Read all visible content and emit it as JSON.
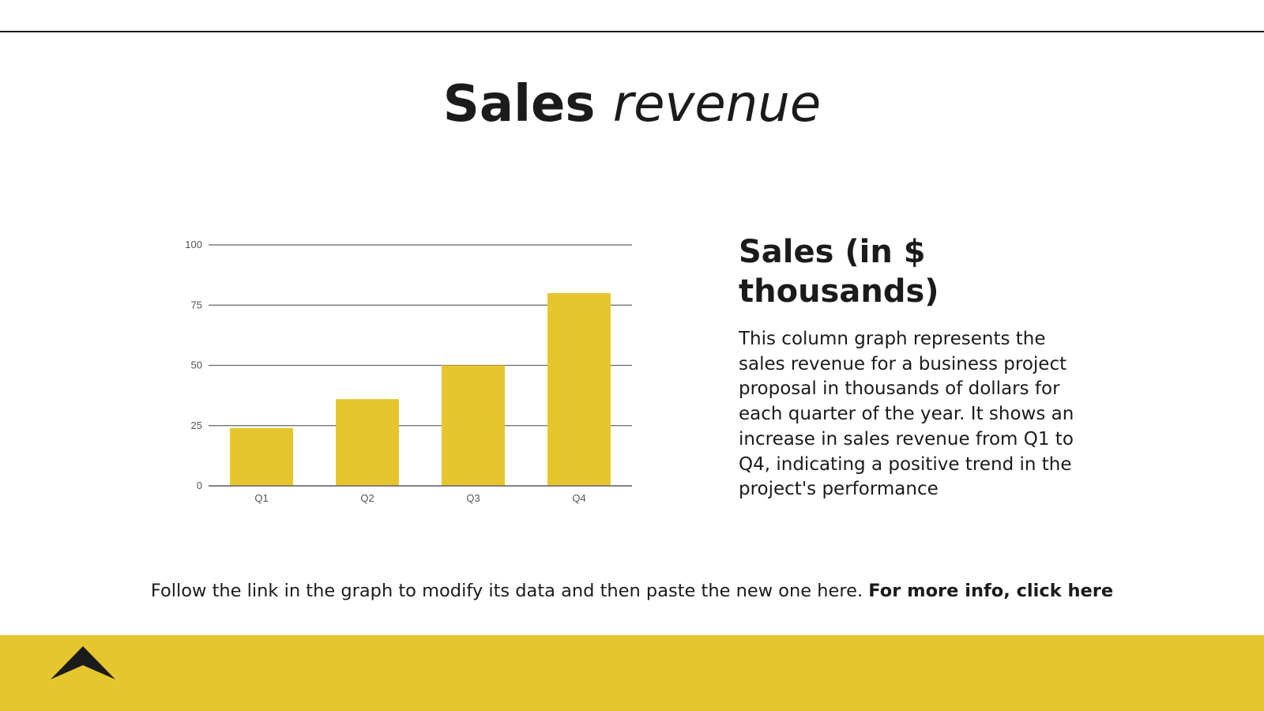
{
  "slide": {
    "title_bold": "Sales",
    "title_italic": "revenue",
    "side_title": "Sales (in $ thousands)",
    "side_text": "This column graph represents the sales revenue for a business project proposal in thousands of dollars for each quarter of the year. It shows an increase in sales revenue from Q1 to Q4, indicating a positive trend in the project's performance",
    "footer_text": "Follow the link in the graph to modify its data and then paste the new one here.",
    "footer_link": "For more info, click here",
    "up_icon": "chevron-up-icon"
  },
  "colors": {
    "accent": "#e6c62e",
    "text": "#1b1b1b",
    "grid": "#666666",
    "tick": "#555555"
  },
  "chart_data": {
    "type": "bar",
    "categories": [
      "Q1",
      "Q2",
      "Q3",
      "Q4"
    ],
    "values": [
      24,
      36,
      50,
      80
    ],
    "yticks": [
      0,
      25,
      50,
      75,
      100
    ],
    "ylim": [
      0,
      100
    ],
    "grid": true,
    "legend": "none",
    "bar_color": "#e6c62e"
  }
}
